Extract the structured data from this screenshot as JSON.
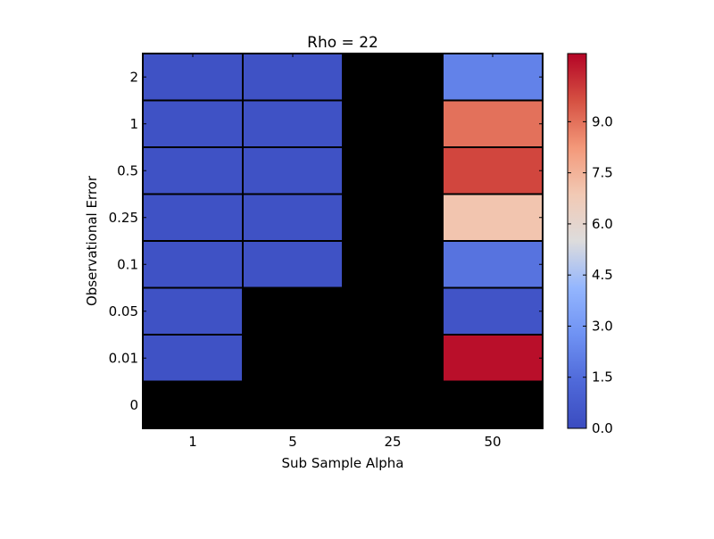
{
  "chart_data": {
    "type": "heatmap",
    "title": "Rho = 22",
    "xlabel": "Sub Sample Alpha",
    "ylabel": "Observational Error",
    "x_categories": [
      "1",
      "5",
      "25",
      "50"
    ],
    "y_categories": [
      "2",
      "1",
      "0.5",
      "0.25",
      "0.1",
      "0.05",
      "0.01",
      "0"
    ],
    "values": [
      [
        0.3,
        0.3,
        null,
        2.2
      ],
      [
        0.3,
        0.3,
        null,
        9.0
      ],
      [
        0.3,
        0.3,
        null,
        9.8
      ],
      [
        0.3,
        0.3,
        null,
        7.0
      ],
      [
        0.3,
        0.3,
        null,
        1.7
      ],
      [
        0.3,
        null,
        null,
        0.4
      ],
      [
        0.3,
        null,
        null,
        10.8
      ],
      [
        null,
        null,
        null,
        null
      ]
    ],
    "missing_color": "#000000",
    "colormap": "coolwarm",
    "colorbar": {
      "min": 0.0,
      "max": 11.0,
      "ticks": [
        "0.0",
        "1.5",
        "3.0",
        "4.5",
        "6.0",
        "7.5",
        "9.0"
      ]
    }
  }
}
